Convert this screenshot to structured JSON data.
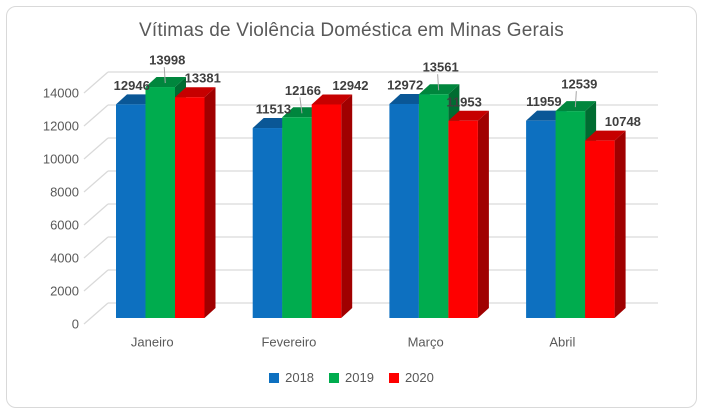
{
  "window": {
    "background": "#ffffff",
    "frame_border_color": "#d9d9d9"
  },
  "chart_data": {
    "type": "bar",
    "variant": "3d-clustered-column",
    "title": "Vítimas de Violência Doméstica em Minas Gerais",
    "categories": [
      "Janeiro",
      "Fevereiro",
      "Março",
      "Abril"
    ],
    "series": [
      {
        "name": "2018",
        "color": "#0D70C0",
        "values": [
          12946,
          11513,
          12972,
          11959
        ]
      },
      {
        "name": "2019",
        "color": "#00AC4E",
        "values": [
          13998,
          12166,
          13561,
          12539
        ]
      },
      {
        "name": "2020",
        "color": "#FE0000",
        "values": [
          13381,
          12942,
          11953,
          10748
        ]
      }
    ],
    "ylim": [
      0,
      14000
    ],
    "ytick_step": 2000,
    "ytick_labels": [
      "0",
      "2000",
      "4000",
      "6000",
      "8000",
      "10000",
      "12000",
      "14000"
    ],
    "grid": true,
    "gridline_color": "#d9d9d9",
    "leader_line_color": "#a6a6a6",
    "data_labels": true,
    "data_label_color": "#3f3f3f",
    "axis_text_color": "#595959",
    "title_color": "#595959",
    "legend_position": "bottom"
  }
}
